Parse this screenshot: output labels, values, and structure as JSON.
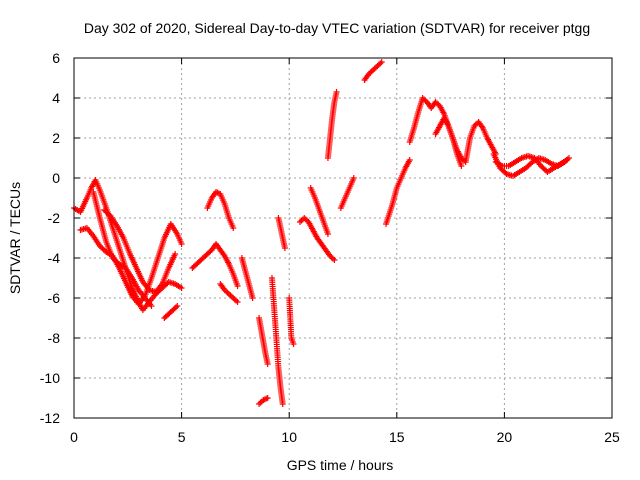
{
  "chart_data": {
    "type": "scatter",
    "title": "Day 302 of 2020, Sidereal Day-to-day VTEC variation (SDTVAR) for receiver ptgg",
    "xlabel": "GPS time / hours",
    "ylabel": "SDTVAR / TECUs",
    "xlim": [
      0,
      25
    ],
    "ylim": [
      -12,
      6
    ],
    "xticks": [
      0,
      5,
      10,
      15,
      20,
      25
    ],
    "yticks": [
      -12,
      -10,
      -8,
      -6,
      -4,
      -2,
      0,
      2,
      4,
      6
    ],
    "xtick_labels": [
      "0",
      "5",
      "10",
      "15",
      "20",
      "25"
    ],
    "ytick_labels": [
      "-12",
      "-10",
      "-8",
      "-6",
      "-4",
      "-2",
      "0",
      "2",
      "4",
      "6"
    ],
    "grid": true,
    "marker": "+",
    "color": "#ff0000",
    "traces": [
      {
        "x": [
          0.0,
          0.3,
          0.6,
          0.8,
          1.0,
          1.2,
          1.5,
          1.8,
          2.1,
          2.4,
          2.7,
          3.0,
          3.2,
          3.5,
          3.8,
          4.1,
          4.4,
          4.7,
          5.0
        ],
        "y": [
          -1.5,
          -1.7,
          -1.0,
          -0.5,
          -0.1,
          -0.6,
          -1.5,
          -2.5,
          -3.5,
          -4.5,
          -5.5,
          -6.2,
          -6.6,
          -6.2,
          -5.8,
          -5.5,
          -5.2,
          -5.3,
          -5.5
        ]
      },
      {
        "x": [
          0.3,
          0.6,
          0.9,
          1.2,
          1.5,
          1.8,
          2.1,
          2.4,
          2.7,
          3.0,
          3.3,
          3.6,
          3.9,
          4.2,
          4.5,
          4.8,
          5.0
        ],
        "y": [
          -2.6,
          -2.5,
          -2.9,
          -3.4,
          -3.7,
          -3.9,
          -4.5,
          -5.2,
          -5.9,
          -6.3,
          -5.9,
          -5.0,
          -4.0,
          -3.0,
          -2.3,
          -2.8,
          -3.3
        ]
      },
      {
        "x": [
          1.4,
          1.7,
          2.0,
          2.3,
          2.6,
          2.9,
          3.2,
          3.5,
          3.8,
          4.1,
          4.4,
          4.7
        ],
        "y": [
          -1.6,
          -1.9,
          -2.4,
          -3.0,
          -3.8,
          -4.5,
          -5.2,
          -5.6,
          -5.7,
          -5.3,
          -4.5,
          -3.8
        ]
      },
      {
        "x": [
          0.9,
          1.2,
          1.5,
          1.8,
          2.1,
          2.4,
          2.7,
          3.0,
          3.3,
          3.6
        ],
        "y": [
          -0.7,
          -2.0,
          -3.2,
          -4.0,
          -4.3,
          -4.5,
          -5.0,
          -5.6,
          -6.0,
          -6.4
        ]
      },
      {
        "x": [
          4.2,
          4.5,
          4.8
        ],
        "y": [
          -7.0,
          -6.7,
          -6.4
        ]
      },
      {
        "x": [
          5.5,
          5.8,
          6.1,
          6.4,
          6.6,
          6.8,
          7.0,
          7.2,
          7.4,
          7.6
        ],
        "y": [
          -4.5,
          -4.2,
          -3.9,
          -3.6,
          -3.3,
          -3.6,
          -3.9,
          -4.3,
          -4.8,
          -5.4
        ]
      },
      {
        "x": [
          6.2,
          6.4,
          6.6,
          6.8,
          7.0,
          7.2,
          7.4
        ],
        "y": [
          -1.5,
          -1.0,
          -0.7,
          -0.8,
          -1.3,
          -2.0,
          -2.5
        ]
      },
      {
        "x": [
          6.8,
          7.0,
          7.2,
          7.4,
          7.6
        ],
        "y": [
          -5.3,
          -5.6,
          -5.8,
          -6.0,
          -6.2
        ]
      },
      {
        "x": [
          7.8,
          7.9,
          8.0,
          8.1,
          8.2,
          8.3
        ],
        "y": [
          -4.0,
          -4.4,
          -4.8,
          -5.2,
          -5.6,
          -6.0
        ]
      },
      {
        "x": [
          8.6,
          8.7,
          8.8,
          8.9,
          9.0
        ],
        "y": [
          -7.0,
          -7.6,
          -8.2,
          -8.8,
          -9.3
        ]
      },
      {
        "x": [
          9.2,
          9.3,
          9.4,
          9.5,
          9.6,
          9.7
        ],
        "y": [
          -5.0,
          -6.5,
          -8.0,
          -9.5,
          -10.5,
          -11.3
        ]
      },
      {
        "x": [
          8.6,
          8.8,
          9.0
        ],
        "y": [
          -11.3,
          -11.1,
          -11.0
        ]
      },
      {
        "x": [
          9.5,
          9.6,
          9.7,
          9.8
        ],
        "y": [
          -2.0,
          -2.5,
          -3.0,
          -3.5
        ]
      },
      {
        "x": [
          10.0,
          10.1,
          10.2
        ],
        "y": [
          -6.0,
          -8.0,
          -8.3
        ]
      },
      {
        "x": [
          10.5,
          10.7,
          10.9,
          11.1,
          11.3,
          11.5,
          11.7,
          11.9,
          12.1
        ],
        "y": [
          -2.2,
          -2.0,
          -2.2,
          -2.6,
          -3.0,
          -3.3,
          -3.6,
          -3.9,
          -4.1
        ]
      },
      {
        "x": [
          11.0,
          11.2,
          11.4,
          11.6,
          11.8
        ],
        "y": [
          -0.5,
          -1.0,
          -1.6,
          -2.2,
          -2.8
        ]
      },
      {
        "x": [
          11.8,
          11.9,
          12.0,
          12.1,
          12.2
        ],
        "y": [
          1.0,
          2.0,
          3.0,
          3.8,
          4.3
        ]
      },
      {
        "x": [
          12.4,
          12.6,
          12.8,
          13.0
        ],
        "y": [
          -1.5,
          -1.0,
          -0.5,
          0.0
        ]
      },
      {
        "x": [
          13.5,
          13.7,
          13.9,
          14.1,
          14.3
        ],
        "y": [
          4.9,
          5.2,
          5.4,
          5.6,
          5.8
        ]
      },
      {
        "x": [
          14.5,
          14.8,
          15.0,
          15.2,
          15.4,
          15.6
        ],
        "y": [
          -2.3,
          -1.3,
          -0.5,
          0.0,
          0.5,
          0.9
        ]
      },
      {
        "x": [
          15.6,
          15.8,
          16.0,
          16.2,
          16.4,
          16.6,
          16.8,
          17.0,
          17.2,
          17.4,
          17.6,
          17.8,
          18.0,
          18.2,
          18.4,
          18.6,
          18.8,
          19.0,
          19.2,
          19.4,
          19.6
        ],
        "y": [
          1.8,
          2.5,
          3.3,
          4.0,
          3.8,
          3.5,
          3.8,
          3.6,
          3.2,
          2.6,
          2.0,
          1.4,
          1.0,
          0.8,
          2.0,
          2.6,
          2.8,
          2.5,
          2.0,
          1.6,
          1.2
        ]
      },
      {
        "x": [
          16.8,
          17.0,
          17.2,
          17.4,
          17.6,
          17.8,
          18.0
        ],
        "y": [
          2.2,
          2.6,
          3.0,
          2.6,
          2.0,
          1.2,
          0.6
        ]
      },
      {
        "x": [
          19.5,
          19.8,
          20.1,
          20.4,
          20.7,
          21.0,
          21.3,
          21.6,
          21.9,
          22.2,
          22.5,
          22.8,
          23.0
        ],
        "y": [
          1.2,
          0.5,
          0.2,
          0.1,
          0.3,
          0.5,
          0.8,
          1.0,
          0.9,
          0.7,
          0.6,
          0.8,
          1.0
        ]
      },
      {
        "x": [
          19.6,
          19.9,
          20.2,
          20.5,
          20.8,
          21.1,
          21.4,
          21.7,
          22.0,
          22.3,
          22.6,
          22.9
        ],
        "y": [
          0.8,
          0.6,
          0.6,
          0.8,
          1.0,
          1.1,
          1.0,
          0.6,
          0.3,
          0.5,
          0.7,
          0.9
        ]
      }
    ]
  }
}
